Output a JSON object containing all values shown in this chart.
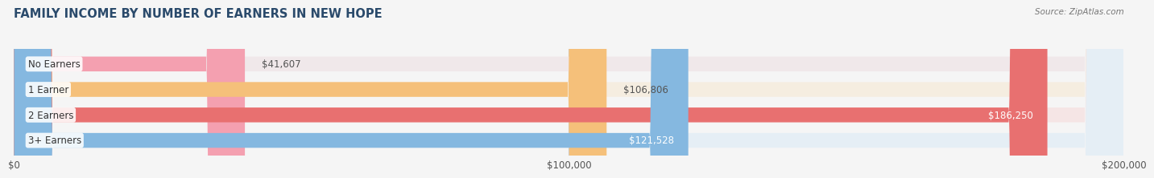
{
  "title": "FAMILY INCOME BY NUMBER OF EARNERS IN NEW HOPE",
  "source": "Source: ZipAtlas.com",
  "categories": [
    "No Earners",
    "1 Earner",
    "2 Earners",
    "3+ Earners"
  ],
  "values": [
    41607,
    106806,
    186250,
    121528
  ],
  "bar_colors": [
    "#f4a0b0",
    "#f5c07a",
    "#e87070",
    "#85b8e0"
  ],
  "bar_bg_colors": [
    "#f0e8ea",
    "#f5ede0",
    "#f5e5e5",
    "#e5eef5"
  ],
  "value_labels": [
    "$41,607",
    "$106,806",
    "$186,250",
    "$121,528"
  ],
  "value_inside": [
    false,
    false,
    true,
    true
  ],
  "xlim": [
    0,
    200000
  ],
  "xticks": [
    0,
    100000,
    200000
  ],
  "xtick_labels": [
    "$0",
    "$100,000",
    "$200,000"
  ],
  "title_color": "#2a4a6b",
  "title_fontsize": 10.5,
  "source_color": "#777777",
  "bar_height": 0.58,
  "background_color": "#f5f5f5"
}
